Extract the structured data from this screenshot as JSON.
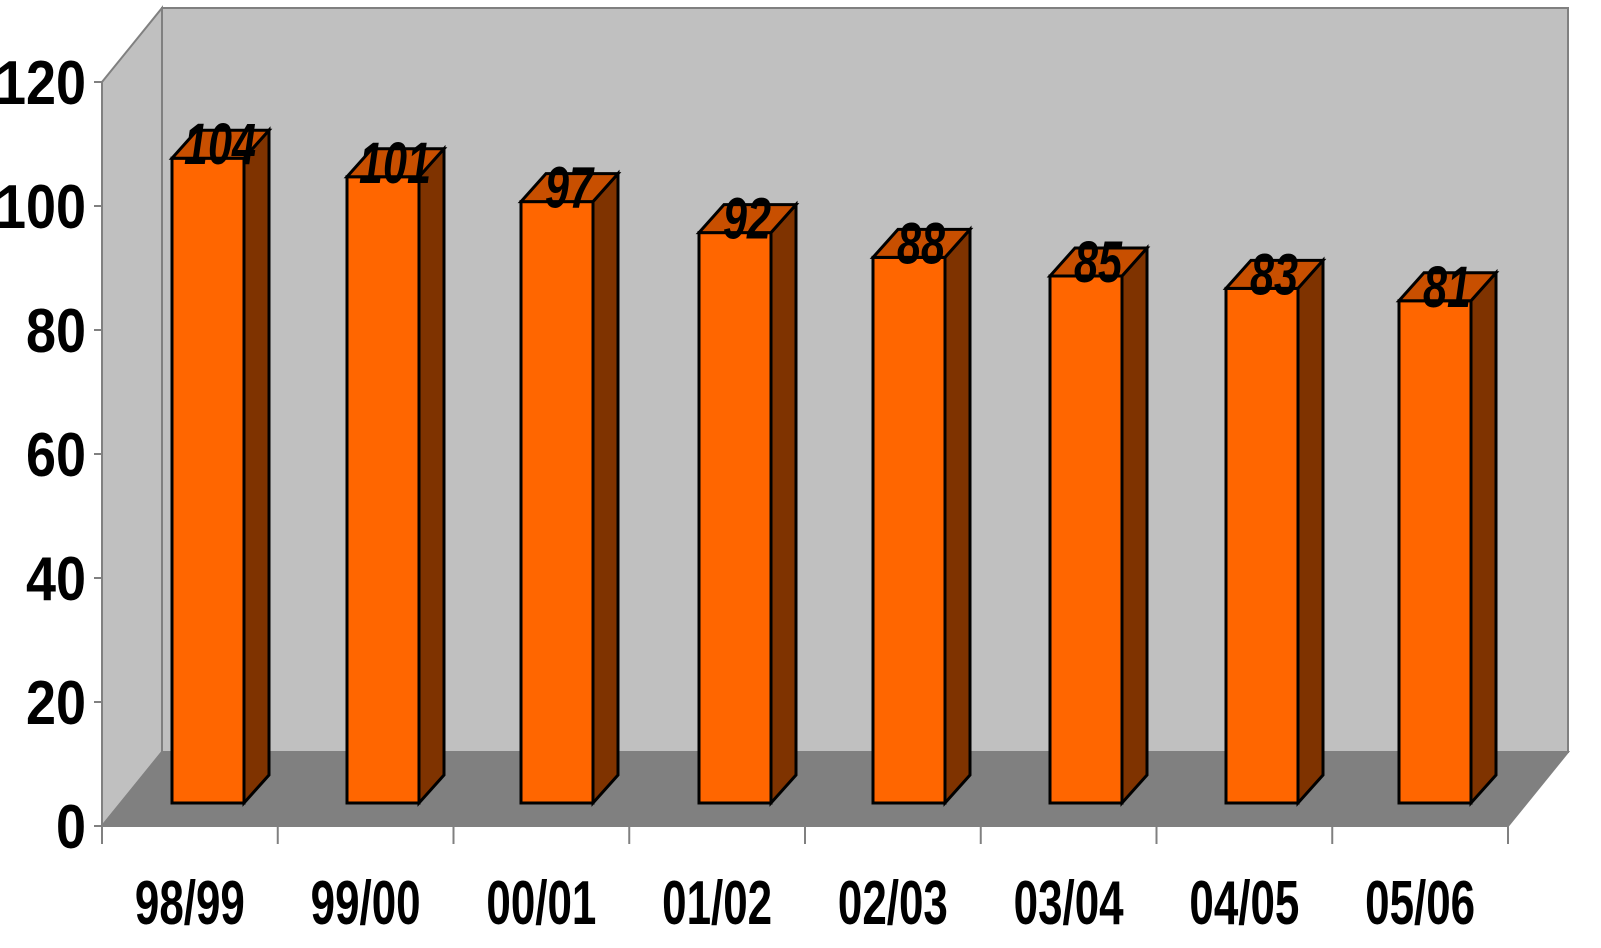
{
  "chart_data": {
    "type": "bar",
    "categories": [
      "98/99",
      "99/00",
      "00/01",
      "01/02",
      "02/03",
      "03/04",
      "04/05",
      "05/06"
    ],
    "values": [
      104,
      101,
      97,
      92,
      88,
      85,
      83,
      81
    ],
    "title": "",
    "xlabel": "",
    "ylabel": "",
    "ylim": [
      0,
      120
    ],
    "yticks": [
      "0",
      "20",
      "40",
      "60",
      "80",
      "100",
      "120"
    ],
    "grid": false,
    "legend": "none",
    "three_d": true,
    "colors": {
      "bar_front": "#ff6600",
      "bar_side": "#7f3300",
      "bar_top": "#c84f00",
      "back_wall": "#c0c0c0",
      "floor": "#808080",
      "axis": "#808080",
      "outline": "#000000"
    }
  }
}
